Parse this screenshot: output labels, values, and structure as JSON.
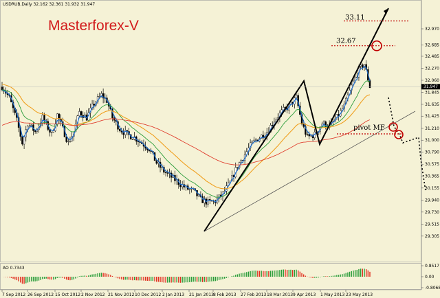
{
  "chart_data": [
    {
      "type": "candlestick",
      "title": "USDRUB,Daily",
      "ohlc_header": "32.162 32.361 31.932 31.947",
      "watermark": "Masterforex-V",
      "current_price": "31.947",
      "y_ticks": [
        "32.970",
        "32.685",
        "32.485",
        "32.270",
        "32.060",
        "31.845",
        "31.635",
        "31.425",
        "31.210",
        "31.000",
        "30.790",
        "30.575",
        "30.365",
        "30.155",
        "29.940",
        "29.730",
        "29.515",
        "29.305"
      ],
      "ylim": [
        29.25,
        33.15
      ],
      "x_ticks": [
        "7 Sep 2012",
        "26 Sep 2012",
        "15 Oct 2012",
        "2 Nov 2012",
        "21 Nov 2012",
        "10 Dec 2012",
        "2 Jan 2013",
        "21 Jan 2013",
        "8 Feb 2013",
        "27 Feb 2013",
        "18 Mar 2013",
        "9 Apr 2013",
        "1 May 2013",
        "23 May 2013"
      ],
      "annotations": [
        {
          "text": "33.11",
          "value": 33.11
        },
        {
          "text": "32.67",
          "value": 32.67
        },
        {
          "text": "pivot MF",
          "value": 31.0
        }
      ],
      "moving_averages": [
        "blue",
        "green",
        "orange",
        "red"
      ],
      "colors": {
        "background": "#f5f2d6",
        "candles": "#000000",
        "ma_fast": "#1e6fd0",
        "ma_mid": "#2a9d3a",
        "ma_slow": "#f0a020",
        "ma_long": "#e04030",
        "target": "#c00000"
      }
    },
    {
      "type": "bar",
      "title": "AO 0.7343",
      "y_ticks": [
        "0.8517",
        "0.00",
        "-0.8068"
      ],
      "ylim": [
        -0.8068,
        0.8517
      ],
      "colors": {
        "up": "#2a9d3a",
        "down": "#e03020"
      }
    }
  ]
}
